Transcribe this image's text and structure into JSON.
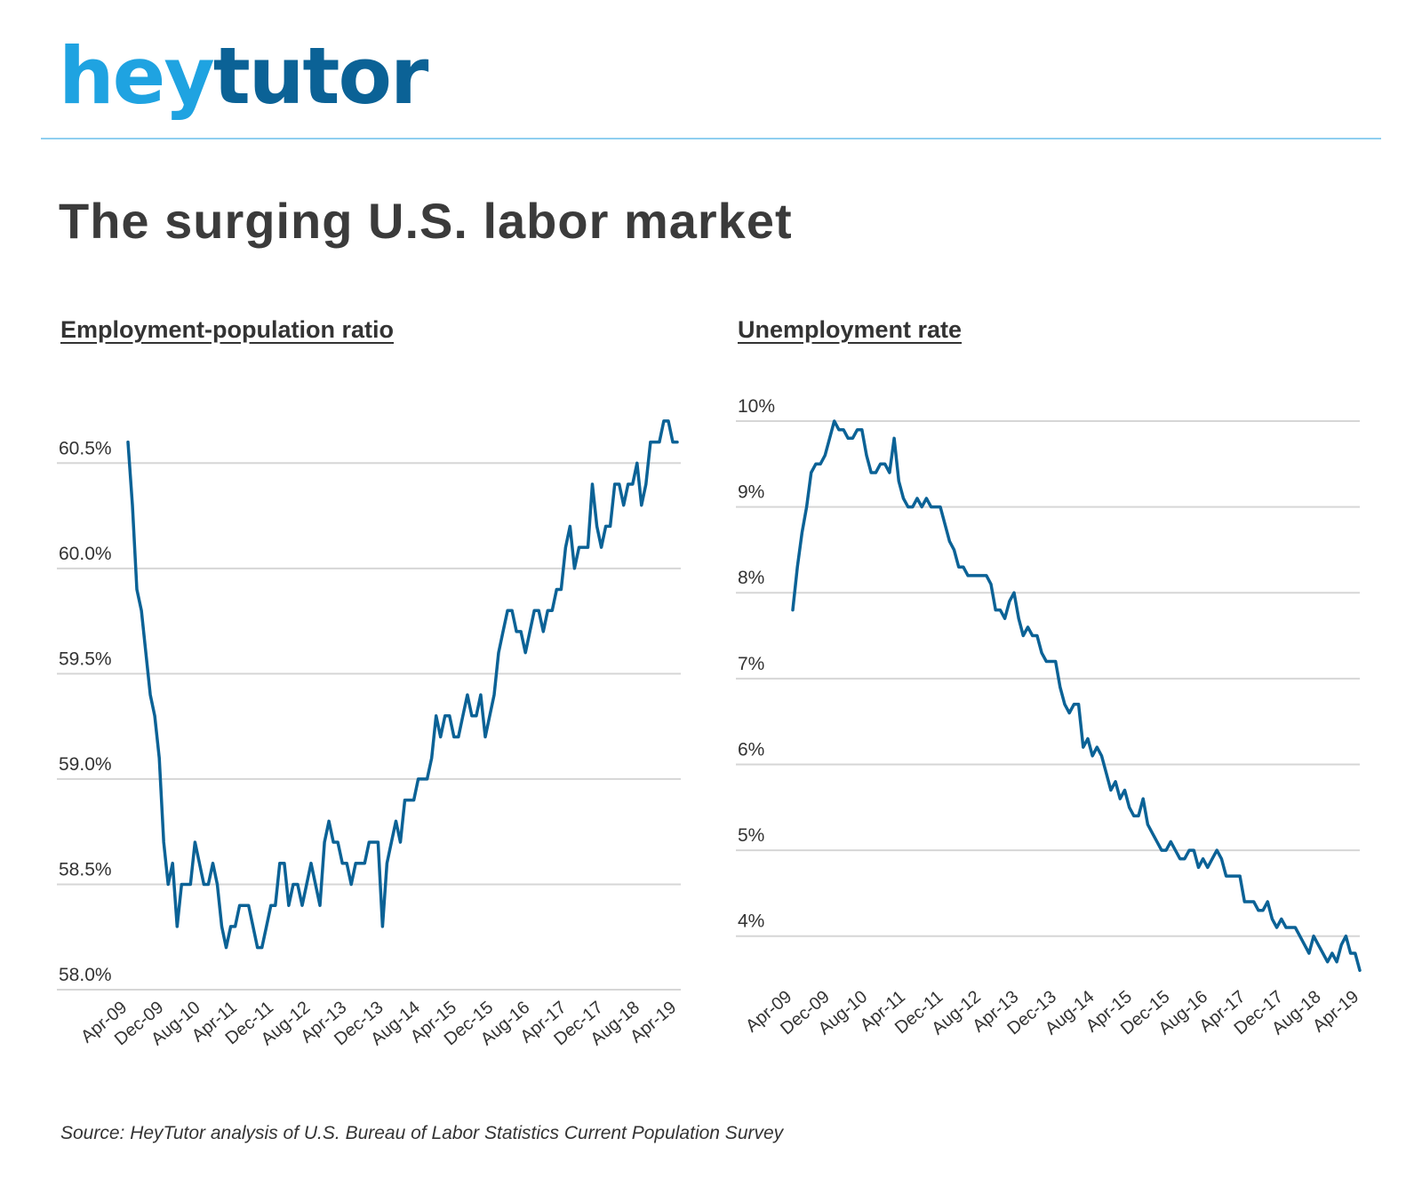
{
  "brand": {
    "logo_hey": "hey",
    "logo_tutor": "tutor",
    "hey_color": "#1fa3e1",
    "tutor_color": "#0b6296",
    "rule_color": "#8fcff0"
  },
  "title": "The surging U.S. labor market",
  "source": "Source: HeyTutor analysis of U.S. Bureau of Labor Statistics Current Population Survey",
  "chart_data": [
    {
      "type": "line",
      "title": "Employment-population ratio",
      "line_color": "#0b6296",
      "grid": true,
      "ylim": [
        58.0,
        60.75
      ],
      "yticks": [
        58.0,
        58.5,
        59.0,
        59.5,
        60.0,
        60.5
      ],
      "ytick_labels": [
        "58.0%",
        "58.5%",
        "59.0%",
        "59.5%",
        "60.0%",
        "60.5%"
      ],
      "xticks": [
        "Apr-09",
        "Dec-09",
        "Aug-10",
        "Apr-11",
        "Dec-11",
        "Aug-12",
        "Apr-13",
        "Dec-13",
        "Aug-14",
        "Apr-15",
        "Dec-15",
        "Aug-16",
        "Apr-17",
        "Dec-17",
        "Aug-18",
        "Apr-19"
      ],
      "start_month": "Apr-09",
      "end_month": "Apr-19",
      "series": [
        {
          "values": [
            60.6,
            60.3,
            59.9,
            59.8,
            59.6,
            59.4,
            59.3,
            59.1,
            58.7,
            58.5,
            58.6,
            58.3,
            58.5,
            58.5,
            58.5,
            58.7,
            58.6,
            58.5,
            58.5,
            58.6,
            58.5,
            58.3,
            58.2,
            58.3,
            58.3,
            58.4,
            58.4,
            58.4,
            58.3,
            58.2,
            58.2,
            58.3,
            58.4,
            58.4,
            58.6,
            58.6,
            58.4,
            58.5,
            58.5,
            58.4,
            58.5,
            58.6,
            58.5,
            58.4,
            58.7,
            58.8,
            58.7,
            58.7,
            58.6,
            58.6,
            58.5,
            58.6,
            58.6,
            58.6,
            58.7,
            58.7,
            58.7,
            58.3,
            58.6,
            58.7,
            58.8,
            58.7,
            58.9,
            58.9,
            58.9,
            59.0,
            59.0,
            59.0,
            59.1,
            59.3,
            59.2,
            59.3,
            59.3,
            59.2,
            59.2,
            59.3,
            59.4,
            59.3,
            59.3,
            59.4,
            59.2,
            59.3,
            59.4,
            59.6,
            59.7,
            59.8,
            59.8,
            59.7,
            59.7,
            59.6,
            59.7,
            59.8,
            59.8,
            59.7,
            59.8,
            59.8,
            59.9,
            59.9,
            60.1,
            60.2,
            60.0,
            60.1,
            60.1,
            60.1,
            60.4,
            60.2,
            60.1,
            60.2,
            60.2,
            60.4,
            60.4,
            60.3,
            60.4,
            60.4,
            60.5,
            60.3,
            60.4,
            60.6,
            60.6,
            60.6,
            60.7,
            60.7,
            60.6,
            60.6
          ]
        }
      ]
    },
    {
      "type": "line",
      "title": "Unemployment rate",
      "line_color": "#0b6296",
      "grid": true,
      "ylim": [
        3.5,
        10.0
      ],
      "yticks": [
        4,
        5,
        6,
        7,
        8,
        9,
        10
      ],
      "ytick_labels": [
        "4%",
        "5%",
        "6%",
        "7%",
        "8%",
        "9%",
        "10%"
      ],
      "xticks": [
        "Apr-09",
        "Dec-09",
        "Aug-10",
        "Apr-11",
        "Dec-11",
        "Aug-12",
        "Apr-13",
        "Dec-13",
        "Aug-14",
        "Apr-15",
        "Dec-15",
        "Aug-16",
        "Apr-17",
        "Dec-17",
        "Aug-18",
        "Apr-19"
      ],
      "start_month": "Apr-09",
      "end_month": "Apr-19",
      "series": [
        {
          "values": [
            7.8,
            8.3,
            8.7,
            9.0,
            9.4,
            9.5,
            9.5,
            9.6,
            9.8,
            10.0,
            9.9,
            9.9,
            9.8,
            9.8,
            9.9,
            9.9,
            9.6,
            9.4,
            9.4,
            9.5,
            9.5,
            9.4,
            9.8,
            9.3,
            9.1,
            9.0,
            9.0,
            9.1,
            9.0,
            9.1,
            9.0,
            9.0,
            9.0,
            8.8,
            8.6,
            8.5,
            8.3,
            8.3,
            8.2,
            8.2,
            8.2,
            8.2,
            8.2,
            8.1,
            7.8,
            7.8,
            7.7,
            7.9,
            8.0,
            7.7,
            7.5,
            7.6,
            7.5,
            7.5,
            7.3,
            7.2,
            7.2,
            7.2,
            6.9,
            6.7,
            6.6,
            6.7,
            6.7,
            6.2,
            6.3,
            6.1,
            6.2,
            6.1,
            5.9,
            5.7,
            5.8,
            5.6,
            5.7,
            5.5,
            5.4,
            5.4,
            5.6,
            5.3,
            5.2,
            5.1,
            5.0,
            5.0,
            5.1,
            5.0,
            4.9,
            4.9,
            5.0,
            5.0,
            4.8,
            4.9,
            4.8,
            4.9,
            5.0,
            4.9,
            4.7,
            4.7,
            4.7,
            4.7,
            4.4,
            4.4,
            4.4,
            4.3,
            4.3,
            4.4,
            4.2,
            4.1,
            4.2,
            4.1,
            4.1,
            4.1,
            4.0,
            3.9,
            3.8,
            4.0,
            3.9,
            3.8,
            3.7,
            3.8,
            3.7,
            3.9,
            4.0,
            3.8,
            3.8,
            3.6
          ]
        }
      ]
    }
  ]
}
